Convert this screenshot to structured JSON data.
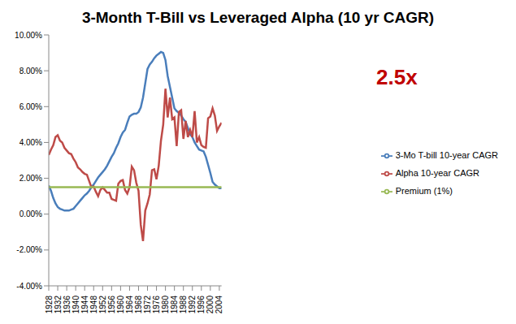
{
  "chart_data": {
    "type": "line",
    "title": "3-Month T-Bill vs Leveraged Alpha (10 yr CAGR)",
    "annotation": "2.5x",
    "x": [
      1928,
      1929,
      1930,
      1931,
      1932,
      1933,
      1934,
      1935,
      1936,
      1937,
      1938,
      1939,
      1940,
      1941,
      1942,
      1943,
      1944,
      1945,
      1946,
      1947,
      1948,
      1949,
      1950,
      1951,
      1952,
      1953,
      1954,
      1955,
      1956,
      1957,
      1958,
      1959,
      1960,
      1961,
      1962,
      1963,
      1964,
      1965,
      1966,
      1967,
      1968,
      1969,
      1970,
      1971,
      1972,
      1973,
      1974,
      1975,
      1976,
      1977,
      1978,
      1979,
      1980,
      1981,
      1982,
      1983,
      1984,
      1985,
      1986,
      1987,
      1988,
      1989,
      1990,
      1991,
      1992,
      1993,
      1994,
      1995,
      1996,
      1997,
      1998,
      1999,
      2000,
      2001,
      2002,
      2003,
      2004,
      2005
    ],
    "series": [
      {
        "name": "3-Mo T-bill 10-year CAGR",
        "color": "#4a7ebb",
        "values": [
          1.6,
          1.3,
          0.9,
          0.6,
          0.4,
          0.3,
          0.25,
          0.2,
          0.2,
          0.2,
          0.25,
          0.3,
          0.45,
          0.6,
          0.75,
          0.9,
          1.05,
          1.15,
          1.3,
          1.5,
          1.65,
          1.85,
          2.05,
          2.2,
          2.35,
          2.5,
          2.7,
          2.95,
          3.2,
          3.4,
          3.7,
          3.95,
          4.3,
          4.55,
          4.7,
          5.1,
          5.45,
          5.55,
          5.6,
          5.6,
          5.7,
          5.95,
          6.5,
          7.3,
          8.1,
          8.35,
          8.5,
          8.7,
          8.85,
          8.95,
          9.05,
          9.0,
          8.6,
          7.7,
          7.1,
          6.5,
          5.9,
          5.75,
          5.65,
          5.5,
          5.3,
          5.15,
          4.8,
          4.45,
          4.3,
          4.0,
          3.8,
          3.6,
          3.55,
          3.5,
          3.2,
          2.75,
          2.3,
          1.8,
          1.65,
          1.55,
          1.45,
          1.45
        ]
      },
      {
        "name": "Alpha 10-year CAGR",
        "color": "#be4b48",
        "values": [
          3.3,
          3.6,
          3.85,
          4.3,
          4.4,
          4.1,
          4.0,
          3.7,
          3.55,
          3.4,
          3.35,
          3.1,
          2.9,
          2.6,
          2.5,
          2.35,
          2.25,
          2.2,
          1.85,
          1.5,
          1.55,
          1.25,
          1.0,
          1.35,
          1.5,
          1.35,
          1.2,
          1.2,
          0.85,
          0.8,
          0.75,
          1.7,
          1.85,
          1.9,
          1.35,
          1.15,
          1.5,
          2.65,
          2.45,
          1.75,
          1.3,
          -0.6,
          -1.5,
          0.2,
          0.6,
          1.1,
          2.45,
          2.5,
          1.95,
          2.7,
          4.1,
          5.0,
          7.0,
          5.4,
          6.5,
          5.3,
          5.4,
          3.8,
          5.7,
          5.8,
          4.2,
          5.2,
          4.3,
          4.7,
          4.3,
          5.75,
          4.0,
          4.3,
          3.85,
          3.75,
          3.7,
          5.35,
          5.45,
          5.9,
          5.5,
          4.65,
          4.9,
          5.1
        ]
      },
      {
        "name": "Premium (1%)",
        "color": "#98b954",
        "values": [
          1.5,
          1.5,
          1.5,
          1.5,
          1.5,
          1.5,
          1.5,
          1.5,
          1.5,
          1.5,
          1.5,
          1.5,
          1.5,
          1.5,
          1.5,
          1.5,
          1.5,
          1.5,
          1.5,
          1.5,
          1.5,
          1.5,
          1.5,
          1.5,
          1.5,
          1.5,
          1.5,
          1.5,
          1.5,
          1.5,
          1.5,
          1.5,
          1.5,
          1.5,
          1.5,
          1.5,
          1.5,
          1.5,
          1.5,
          1.5,
          1.5,
          1.5,
          1.5,
          1.5,
          1.5,
          1.5,
          1.5,
          1.5,
          1.5,
          1.5,
          1.5,
          1.5,
          1.5,
          1.5,
          1.5,
          1.5,
          1.5,
          1.5,
          1.5,
          1.5,
          1.5,
          1.5,
          1.5,
          1.5,
          1.5,
          1.5,
          1.5,
          1.5,
          1.5,
          1.5,
          1.5,
          1.5,
          1.5,
          1.5,
          1.5,
          1.5,
          1.5,
          1.5
        ]
      }
    ],
    "xlim": [
      1928,
      2005
    ],
    "xticks": [
      1928,
      1932,
      1936,
      1940,
      1944,
      1948,
      1952,
      1956,
      1960,
      1964,
      1968,
      1972,
      1976,
      1980,
      1984,
      1988,
      1992,
      1996,
      2000,
      2004
    ],
    "ylim": [
      -4,
      10
    ],
    "yticks": [
      {
        "value": -4,
        "label": "-4.00%"
      },
      {
        "value": -2,
        "label": "-2.00%"
      },
      {
        "value": 0,
        "label": "0.00%"
      },
      {
        "value": 2,
        "label": "2.00%"
      },
      {
        "value": 4,
        "label": "4.00%"
      },
      {
        "value": 6,
        "label": "6.00%"
      },
      {
        "value": 8,
        "label": "8.00%"
      },
      {
        "value": 10,
        "label": "10.00%"
      }
    ],
    "grid": false,
    "legend": "right"
  }
}
